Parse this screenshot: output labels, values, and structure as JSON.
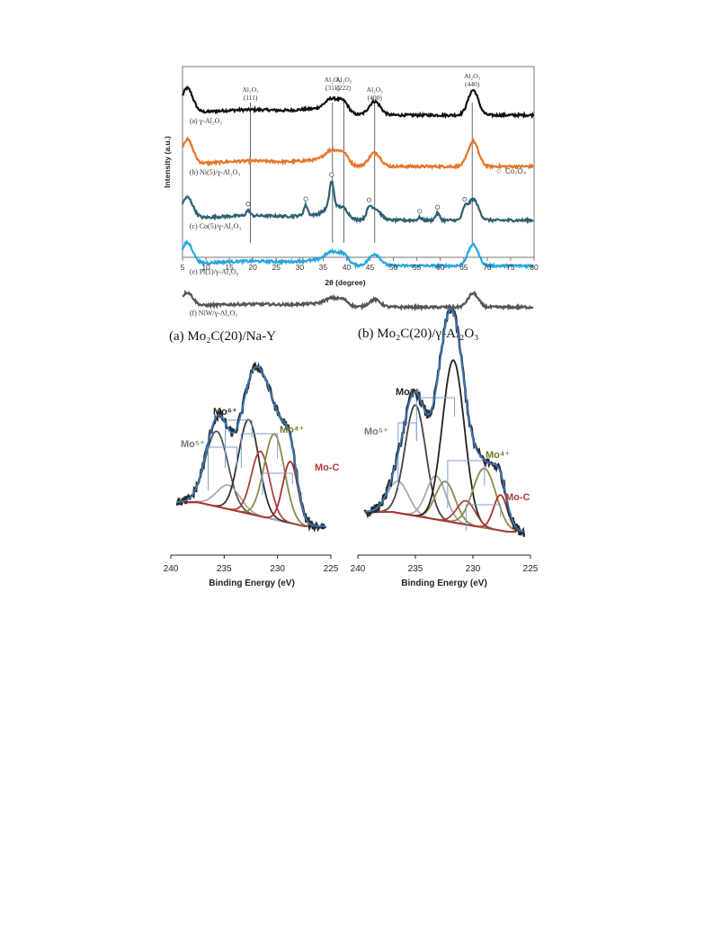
{
  "chart_data": [
    {
      "type": "line",
      "title": "",
      "xlabel": "2θ (degree)",
      "ylabel": "Intensity (a.u.)",
      "xlim": [
        5,
        80
      ],
      "xticks": [
        5,
        10,
        15,
        20,
        25,
        30,
        35,
        40,
        45,
        50,
        55,
        60,
        65,
        70,
        75,
        80
      ],
      "y_ticks_shown": false,
      "grid": false,
      "reference_lines": [
        {
          "x": 19.5,
          "label_main": "Al₂O₃",
          "label_hkl": "(111)"
        },
        {
          "x": 37.0,
          "label_main": "Al₂O₃",
          "label_hkl": "(311)"
        },
        {
          "x": 39.4,
          "label_main": "Al₂O₃",
          "label_hkl": "(222)"
        },
        {
          "x": 46.0,
          "label_main": "Al₂O₃",
          "label_hkl": "(400)"
        },
        {
          "x": 66.8,
          "label_main": "Al₂O₃",
          "label_hkl": "(440)"
        }
      ],
      "marker_legend": {
        "symbol": "○",
        "label": "Co₃O₄"
      },
      "co3o4_markers_x": [
        19.0,
        31.3,
        36.8,
        44.8,
        55.6,
        59.4,
        65.2
      ],
      "series": [
        {
          "name": "(a) γ-Al₂O₃",
          "color": "#111111",
          "baseline": 0.0
        },
        {
          "name": "(b) Ni(5)/γ-Al₂O₃",
          "color": "#e5762a",
          "baseline": -0.62
        },
        {
          "name": "(c) Co(5)/γ-Al₂O₃",
          "color": "#2c6170",
          "baseline": -1.27
        },
        {
          "name": "(e) Pt(1)/γ-Al₂O₃",
          "color": "#27a7e1",
          "baseline": -1.82
        },
        {
          "name": "(f) NiW/γ-Al₂O₃",
          "color": "#555555",
          "baseline": -2.32
        }
      ]
    },
    {
      "type": "line",
      "title": "(a) Mo₂C(20)/Na-Y",
      "xlabel": "Binding Energy (eV)",
      "xlim": [
        240,
        225
      ],
      "xticks": [
        240,
        235,
        230,
        225
      ],
      "components": [
        {
          "label": "Mo⁶⁺",
          "color": "#222222",
          "label_color": "#222222"
        },
        {
          "label": "Mo⁵⁺",
          "color": "#9a9a9a",
          "label_color": "#7a7a7a"
        },
        {
          "label": "Mo⁴⁺",
          "color": "#8a8a4a",
          "label_color": "#6a7a2a"
        },
        {
          "label": "Mo-C",
          "color": "#b03a3a",
          "label_color": "#b03a3a"
        }
      ],
      "peaks": [
        {
          "center": 235.7,
          "height": 0.44,
          "width": 1.05,
          "color": "#555555"
        },
        {
          "center": 234.6,
          "height": 0.14,
          "width": 1.1,
          "color": "#aaaaaa"
        },
        {
          "center": 232.7,
          "height": 0.55,
          "width": 0.95,
          "color": "#333333"
        },
        {
          "center": 231.6,
          "height": 0.38,
          "width": 0.85,
          "color": "#b04040"
        },
        {
          "center": 230.3,
          "height": 0.5,
          "width": 0.95,
          "color": "#8a8a4a"
        },
        {
          "center": 228.8,
          "height": 0.36,
          "width": 0.7,
          "color": "#b03030"
        }
      ]
    },
    {
      "type": "line",
      "title": "(b) Mo₂C(20)/γ-Al₂O₃",
      "xlabel": "Binding Energy (eV)",
      "xlim": [
        240,
        225
      ],
      "xticks": [
        240,
        235,
        230,
        225
      ],
      "components": [
        {
          "label": "Mo⁶⁺",
          "color": "#222222",
          "label_color": "#222222"
        },
        {
          "label": "Mo⁵⁺",
          "color": "#9a9a9a",
          "label_color": "#7a7a7a"
        },
        {
          "label": "Mo⁴⁺",
          "color": "#8a8a4a",
          "label_color": "#6a7a2a"
        },
        {
          "label": "Mo-C",
          "color": "#b03a3a",
          "label_color": "#b03a3a"
        }
      ],
      "peaks": [
        {
          "center": 236.5,
          "height": 0.16,
          "width": 0.9,
          "color": "#aaaaaa"
        },
        {
          "center": 235.0,
          "height": 0.56,
          "width": 0.9,
          "color": "#444444"
        },
        {
          "center": 233.2,
          "height": 0.22,
          "width": 0.85,
          "color": "#aaaaaa"
        },
        {
          "center": 232.4,
          "height": 0.2,
          "width": 0.85,
          "color": "#8a8a4a"
        },
        {
          "center": 231.7,
          "height": 0.82,
          "width": 0.95,
          "color": "#222222"
        },
        {
          "center": 230.6,
          "height": 0.12,
          "width": 0.8,
          "color": "#b04040"
        },
        {
          "center": 229.0,
          "height": 0.3,
          "width": 1.0,
          "color": "#8a8a4a"
        },
        {
          "center": 227.6,
          "height": 0.18,
          "width": 0.6,
          "color": "#b03030"
        }
      ]
    }
  ]
}
